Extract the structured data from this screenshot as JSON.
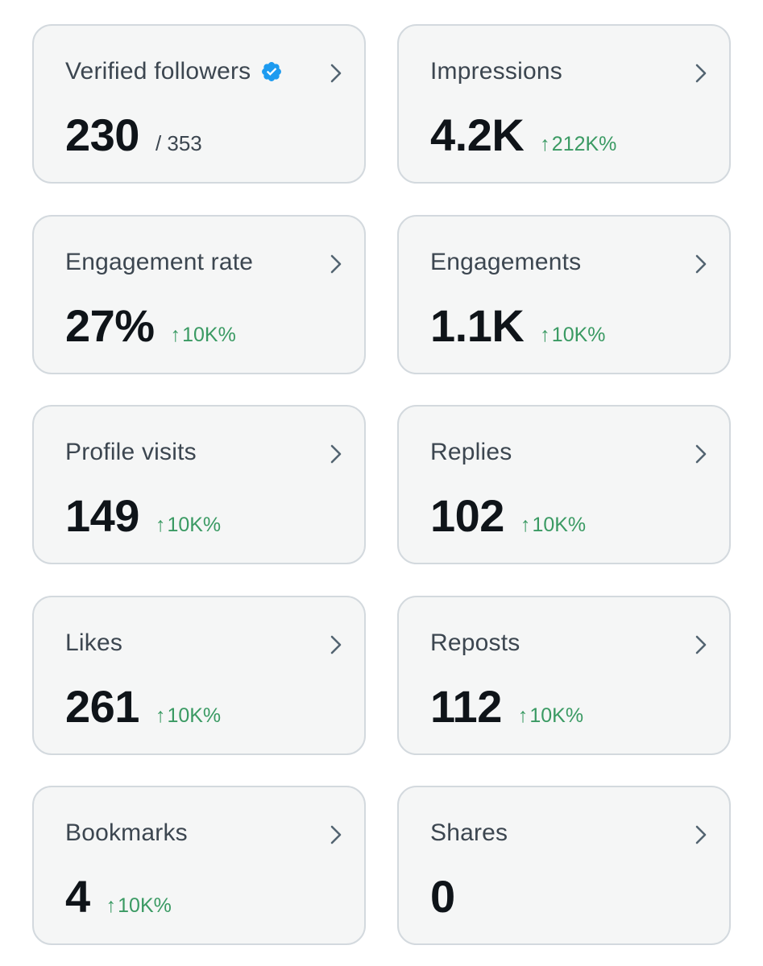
{
  "colors": {
    "card_bg": "#f5f6f6",
    "card_border": "#d3d9de",
    "title": "#3c4650",
    "value": "#0f1419",
    "delta_positive": "#3a9a63",
    "verified_badge": "#1d9bf0"
  },
  "icons": {
    "chevron": "chevron-right-icon",
    "verified": "verified-badge-icon",
    "delta": "arrow-up-icon"
  },
  "cards": [
    {
      "title": "Verified followers",
      "value": "230",
      "sub": "/ 353",
      "delta": ""
    },
    {
      "title": "Impressions",
      "value": "4.2K",
      "sub": "",
      "delta": "212K%"
    },
    {
      "title": "Engagement rate",
      "value": "27%",
      "sub": "",
      "delta": "10K%"
    },
    {
      "title": "Engagements",
      "value": "1.1K",
      "sub": "",
      "delta": "10K%"
    },
    {
      "title": "Profile visits",
      "value": "149",
      "sub": "",
      "delta": "10K%"
    },
    {
      "title": "Replies",
      "value": "102",
      "sub": "",
      "delta": "10K%"
    },
    {
      "title": "Likes",
      "value": "261",
      "sub": "",
      "delta": "10K%"
    },
    {
      "title": "Reposts",
      "value": "112",
      "sub": "",
      "delta": "10K%"
    },
    {
      "title": "Bookmarks",
      "value": "4",
      "sub": "",
      "delta": "10K%"
    },
    {
      "title": "Shares",
      "value": "0",
      "sub": "",
      "delta": ""
    }
  ],
  "delta_arrow": "↑"
}
